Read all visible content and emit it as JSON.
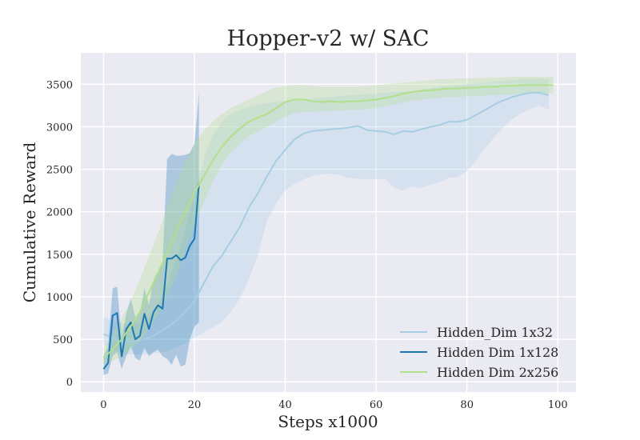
{
  "chart_data": {
    "type": "line",
    "title": "Hopper-v2 w/ SAC",
    "xlabel": "Steps x1000",
    "ylabel": "Cumulative Reward",
    "xlim": [
      -5,
      104
    ],
    "ylim": [
      -120,
      3870
    ],
    "xticks": [
      0,
      20,
      40,
      60,
      80,
      100
    ],
    "yticks": [
      0,
      500,
      1000,
      1500,
      2000,
      2500,
      3000,
      3500
    ],
    "grid": true,
    "background": "#eaeaf2",
    "legend_position": "lower-right",
    "series": [
      {
        "name": "Hidden_Dim 1x32",
        "color": "#a6cee3",
        "x": [
          0,
          2,
          4,
          6,
          8,
          10,
          12,
          14,
          16,
          18,
          20,
          22,
          24,
          26,
          28,
          30,
          32,
          34,
          36,
          38,
          40,
          42,
          44,
          46,
          48,
          50,
          52,
          54,
          56,
          58,
          60,
          62,
          64,
          66,
          68,
          70,
          72,
          74,
          76,
          78,
          80,
          82,
          84,
          86,
          88,
          90,
          92,
          94,
          96,
          98
        ],
        "y": [
          560,
          520,
          480,
          470,
          490,
          520,
          570,
          640,
          720,
          820,
          950,
          1150,
          1350,
          1480,
          1650,
          1820,
          2050,
          2220,
          2420,
          2600,
          2730,
          2850,
          2920,
          2950,
          2960,
          2970,
          2980,
          2990,
          3010,
          2960,
          2950,
          2940,
          2910,
          2950,
          2940,
          2970,
          3000,
          3020,
          3060,
          3060,
          3080,
          3140,
          3200,
          3260,
          3310,
          3350,
          3380,
          3400,
          3400,
          3370
        ],
        "lower": [
          430,
          380,
          340,
          320,
          320,
          330,
          340,
          360,
          400,
          450,
          520,
          580,
          640,
          700,
          820,
          980,
          1200,
          1500,
          1900,
          2100,
          2250,
          2330,
          2380,
          2420,
          2440,
          2450,
          2430,
          2400,
          2390,
          2380,
          2380,
          2390,
          2280,
          2250,
          2300,
          2280,
          2320,
          2350,
          2400,
          2410,
          2480,
          2600,
          2750,
          2880,
          2990,
          3090,
          3160,
          3210,
          3250,
          3200
        ],
        "upper": [
          760,
          720,
          690,
          680,
          700,
          760,
          900,
          1150,
          1450,
          1800,
          2200,
          2600,
          2900,
          3050,
          3150,
          3200,
          3230,
          3260,
          3280,
          3290,
          3300,
          3320,
          3330,
          3330,
          3340,
          3350,
          3360,
          3370,
          3380,
          3380,
          3390,
          3400,
          3410,
          3410,
          3420,
          3440,
          3450,
          3470,
          3480,
          3490,
          3500,
          3510,
          3520,
          3530,
          3540,
          3550,
          3560,
          3560,
          3570,
          3560
        ]
      },
      {
        "name": "Hidden Dim 1x128",
        "color": "#1f78b4",
        "x": [
          0,
          1,
          2,
          3,
          4,
          5,
          6,
          7,
          8,
          9,
          10,
          11,
          12,
          13,
          14,
          15,
          16,
          17,
          18,
          19,
          20,
          21
        ],
        "y": [
          150,
          220,
          780,
          810,
          300,
          620,
          700,
          500,
          540,
          800,
          620,
          820,
          900,
          860,
          1450,
          1450,
          1490,
          1430,
          1460,
          1600,
          1680,
          2330
        ],
        "lower": [
          80,
          100,
          300,
          350,
          150,
          300,
          420,
          280,
          250,
          400,
          300,
          350,
          380,
          300,
          270,
          200,
          320,
          180,
          200,
          500,
          650,
          700
        ],
        "upper": [
          300,
          420,
          1100,
          1120,
          500,
          800,
          980,
          760,
          800,
          1100,
          900,
          1200,
          1300,
          1400,
          2620,
          2680,
          2660,
          2660,
          2670,
          2690,
          2800,
          3400
        ]
      },
      {
        "name": "Hidden Dim 2x256",
        "color": "#b2df8a",
        "x": [
          0,
          2,
          4,
          6,
          8,
          10,
          12,
          14,
          16,
          18,
          20,
          22,
          24,
          26,
          28,
          30,
          32,
          34,
          36,
          38,
          40,
          42,
          44,
          46,
          48,
          50,
          52,
          54,
          56,
          58,
          60,
          62,
          64,
          66,
          68,
          70,
          72,
          74,
          76,
          78,
          80,
          82,
          84,
          86,
          88,
          90,
          92,
          94,
          96,
          98,
          99
        ],
        "y": [
          280,
          380,
          500,
          650,
          820,
          1050,
          1280,
          1520,
          1770,
          2000,
          2220,
          2410,
          2600,
          2760,
          2880,
          2980,
          3060,
          3110,
          3150,
          3220,
          3290,
          3320,
          3320,
          3300,
          3290,
          3300,
          3290,
          3300,
          3300,
          3310,
          3320,
          3340,
          3360,
          3390,
          3410,
          3420,
          3430,
          3440,
          3450,
          3450,
          3460,
          3460,
          3470,
          3470,
          3480,
          3480,
          3490,
          3490,
          3490,
          3490,
          3490
        ],
        "lower": [
          200,
          250,
          300,
          380,
          480,
          620,
          800,
          1000,
          1250,
          1550,
          1850,
          2100,
          2350,
          2550,
          2700,
          2800,
          2890,
          2950,
          3000,
          3060,
          3120,
          3160,
          3170,
          3180,
          3180,
          3190,
          3190,
          3200,
          3200,
          3210,
          3220,
          3240,
          3260,
          3290,
          3310,
          3320,
          3330,
          3340,
          3350,
          3350,
          3360,
          3360,
          3370,
          3370,
          3380,
          3380,
          3390,
          3390,
          3390,
          3390,
          3390
        ],
        "upper": [
          400,
          550,
          750,
          950,
          1200,
          1480,
          1750,
          2050,
          2350,
          2600,
          2800,
          2950,
          3060,
          3150,
          3220,
          3270,
          3320,
          3370,
          3420,
          3460,
          3480,
          3490,
          3490,
          3480,
          3470,
          3470,
          3470,
          3470,
          3470,
          3480,
          3490,
          3500,
          3510,
          3520,
          3530,
          3540,
          3550,
          3560,
          3560,
          3570,
          3570,
          3570,
          3580,
          3580,
          3580,
          3590,
          3590,
          3590,
          3590,
          3590,
          3590
        ]
      }
    ]
  }
}
